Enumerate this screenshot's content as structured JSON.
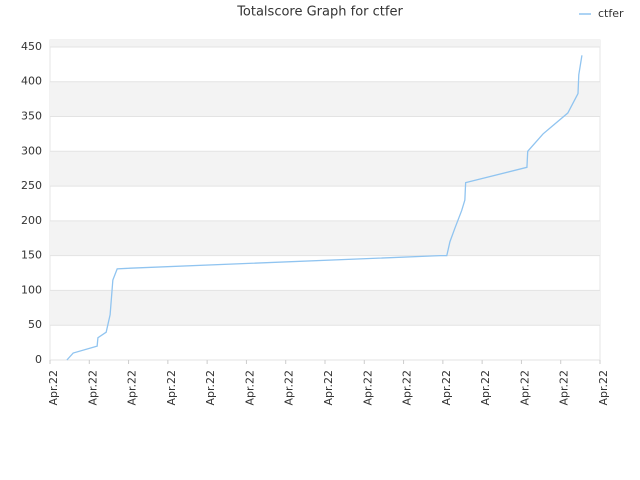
{
  "chart_data": {
    "type": "line",
    "title": "Totalscore Graph for ctfer",
    "series": [
      {
        "name": "ctfer",
        "color": "#90c4f0",
        "x": [
          0.43,
          0.59,
          1.2,
          1.22,
          1.43,
          1.53,
          1.6,
          1.71,
          2.04,
          9.93,
          10.1,
          10.18,
          10.31,
          10.48,
          10.56,
          10.58,
          12.14,
          12.16,
          12.55,
          13.18,
          13.44,
          13.46,
          13.54
        ],
        "values": [
          0,
          10,
          20,
          32,
          40,
          65,
          115,
          131,
          132,
          150,
          150,
          170,
          190,
          215,
          230,
          255,
          277,
          300,
          325,
          355,
          383,
          410,
          438
        ]
      }
    ],
    "xlim": [
      0,
      14
    ],
    "xticks": [
      {
        "value": 0,
        "label": "Apr.22"
      },
      {
        "value": 1,
        "label": "Apr.22"
      },
      {
        "value": 2,
        "label": "Apr.22"
      },
      {
        "value": 3,
        "label": "Apr.22"
      },
      {
        "value": 4,
        "label": "Apr.22"
      },
      {
        "value": 5,
        "label": "Apr.22"
      },
      {
        "value": 6,
        "label": "Apr.22"
      },
      {
        "value": 7,
        "label": "Apr.22"
      },
      {
        "value": 8,
        "label": "Apr.22"
      },
      {
        "value": 9,
        "label": "Apr.22"
      },
      {
        "value": 10,
        "label": "Apr.22"
      },
      {
        "value": 11,
        "label": "Apr.22"
      },
      {
        "value": 12,
        "label": "Apr.22"
      },
      {
        "value": 13,
        "label": "Apr.22"
      },
      {
        "value": 14,
        "label": "Apr.22"
      }
    ],
    "ylim": [
      0,
      460
    ],
    "yticks": [
      0,
      50,
      100,
      150,
      200,
      250,
      300,
      350,
      400,
      450
    ],
    "grid": true,
    "banded": true,
    "legend": "top-right"
  }
}
